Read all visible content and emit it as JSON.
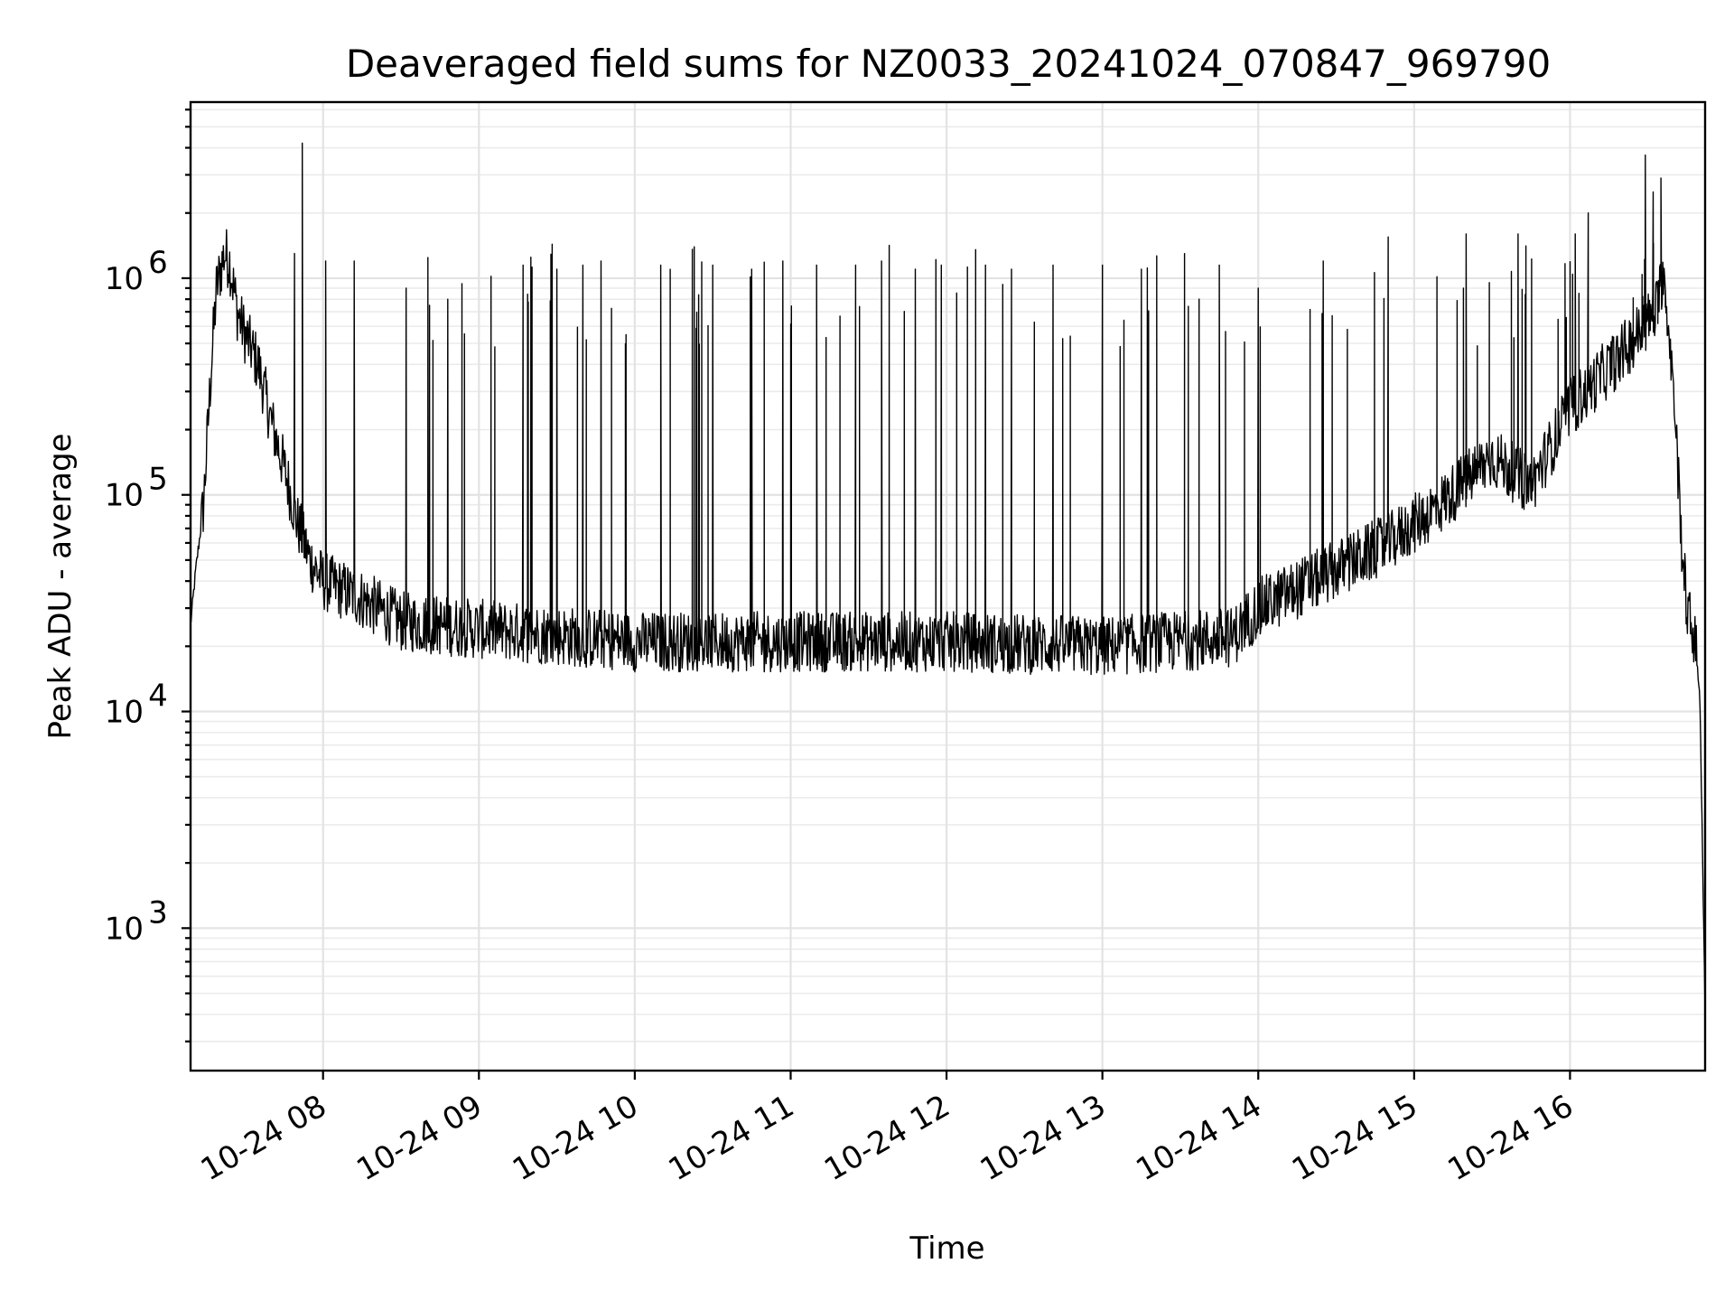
{
  "chart_data": {
    "type": "line",
    "title": "Deaveraged field sums for NZ0033_20241024_070847_969790",
    "xlabel": "Time",
    "ylabel": "Peak ADU - average",
    "x_scale": "time",
    "y_scale": "log",
    "xlim": [
      "2024-10-24 07:09",
      "2024-10-24 16:52"
    ],
    "ylim": [
      220,
      6500000
    ],
    "grid": true,
    "legend": "none",
    "line_color": "#000000",
    "x_ticks": [
      {
        "time": "2024-10-24 08:00",
        "label": "10-24 08"
      },
      {
        "time": "2024-10-24 09:00",
        "label": "10-24 09"
      },
      {
        "time": "2024-10-24 10:00",
        "label": "10-24 10"
      },
      {
        "time": "2024-10-24 11:00",
        "label": "10-24 11"
      },
      {
        "time": "2024-10-24 12:00",
        "label": "10-24 12"
      },
      {
        "time": "2024-10-24 13:00",
        "label": "10-24 13"
      },
      {
        "time": "2024-10-24 14:00",
        "label": "10-24 14"
      },
      {
        "time": "2024-10-24 15:00",
        "label": "10-24 15"
      },
      {
        "time": "2024-10-24 16:00",
        "label": "10-24 16"
      }
    ],
    "y_ticks": [
      {
        "value": 1000,
        "base": "10",
        "exp": "3"
      },
      {
        "value": 10000,
        "base": "10",
        "exp": "4"
      },
      {
        "value": 100000,
        "base": "10",
        "exp": "5"
      },
      {
        "value": 1000000,
        "base": "10",
        "exp": "6"
      }
    ],
    "series": [
      {
        "baseline": [
          [
            "2024-10-24 07:09",
            25000
          ],
          [
            "2024-10-24 07:11",
            45000
          ],
          [
            "2024-10-24 07:14",
            90000
          ],
          [
            "2024-10-24 07:17",
            400000
          ],
          [
            "2024-10-24 07:19",
            900000
          ],
          [
            "2024-10-24 07:22",
            1300000
          ],
          [
            "2024-10-24 07:24",
            1200000
          ],
          [
            "2024-10-24 07:27",
            700000
          ],
          [
            "2024-10-24 07:30",
            550000
          ],
          [
            "2024-10-24 07:35",
            400000
          ],
          [
            "2024-10-24 07:40",
            220000
          ],
          [
            "2024-10-24 07:46",
            120000
          ],
          [
            "2024-10-24 07:50",
            75000
          ],
          [
            "2024-10-24 07:55",
            50000
          ],
          [
            "2024-10-24 08:00",
            40000
          ],
          [
            "2024-10-24 08:15",
            33000
          ],
          [
            "2024-10-24 08:30",
            26000
          ],
          [
            "2024-10-24 09:00",
            24000
          ],
          [
            "2024-10-24 10:00",
            21000
          ],
          [
            "2024-10-24 11:00",
            21000
          ],
          [
            "2024-10-24 12:00",
            21000
          ],
          [
            "2024-10-24 13:00",
            20000
          ],
          [
            "2024-10-24 13:50",
            22000
          ],
          [
            "2024-10-24 14:00",
            30000
          ],
          [
            "2024-10-24 14:30",
            45000
          ],
          [
            "2024-10-24 14:50",
            60000
          ],
          [
            "2024-10-24 15:10",
            90000
          ],
          [
            "2024-10-24 15:30",
            150000
          ],
          [
            "2024-10-24 15:45",
            110000
          ],
          [
            "2024-10-24 16:00",
            250000
          ],
          [
            "2024-10-24 16:20",
            450000
          ],
          [
            "2024-10-24 16:33",
            700000
          ],
          [
            "2024-10-24 16:36",
            1100000
          ],
          [
            "2024-10-24 16:38",
            600000
          ],
          [
            "2024-10-24 16:40",
            300000
          ],
          [
            "2024-10-24 16:43",
            60000
          ],
          [
            "2024-10-24 16:45",
            30000
          ],
          [
            "2024-10-24 16:48",
            22000
          ],
          [
            "2024-10-24 16:50",
            12000
          ],
          [
            "2024-10-24 16:52",
            400
          ]
        ],
        "spikes": [
          [
            "2024-10-24 07:52",
            4200000
          ],
          [
            "2024-10-24 07:49",
            1300000
          ],
          [
            "2024-10-24 08:01",
            1200000
          ],
          [
            "2024-10-24 08:12",
            1200000
          ],
          [
            "2024-10-24 08:32",
            900000
          ],
          [
            "2024-10-24 08:41",
            750000
          ],
          [
            "2024-10-24 08:48",
            800000
          ],
          [
            "2024-10-24 09:17",
            1150000
          ],
          [
            "2024-10-24 09:20",
            1250000
          ],
          [
            "2024-10-24 09:30",
            1100000
          ],
          [
            "2024-10-24 09:40",
            1150000
          ],
          [
            "2024-10-24 09:47",
            1200000
          ],
          [
            "2024-10-24 10:10",
            1150000
          ],
          [
            "2024-10-24 10:30",
            1150000
          ],
          [
            "2024-10-24 10:45",
            1100000
          ],
          [
            "2024-10-24 10:57",
            1200000
          ],
          [
            "2024-10-24 11:10",
            1150000
          ],
          [
            "2024-10-24 11:25",
            1150000
          ],
          [
            "2024-10-24 11:35",
            1200000
          ],
          [
            "2024-10-24 11:48",
            1100000
          ],
          [
            "2024-10-24 11:58",
            1150000
          ],
          [
            "2024-10-24 12:15",
            1150000
          ],
          [
            "2024-10-24 12:25",
            1100000
          ],
          [
            "2024-10-24 12:41",
            1150000
          ],
          [
            "2024-10-24 13:00",
            1150000
          ],
          [
            "2024-10-24 13:15",
            1100000
          ],
          [
            "2024-10-24 13:45",
            1150000
          ],
          [
            "2024-10-24 14:00",
            900000
          ],
          [
            "2024-10-24 14:25",
            1200000
          ],
          [
            "2024-10-24 14:50",
            1550000
          ],
          [
            "2024-10-24 15:20",
            1600000
          ],
          [
            "2024-10-24 15:40",
            1600000
          ],
          [
            "2024-10-24 16:02",
            1600000
          ],
          [
            "2024-10-24 16:07",
            2000000
          ],
          [
            "2024-10-24 16:29",
            3700000
          ],
          [
            "2024-10-24 16:32",
            2500000
          ],
          [
            "2024-10-24 16:35",
            2900000
          ]
        ]
      }
    ]
  }
}
